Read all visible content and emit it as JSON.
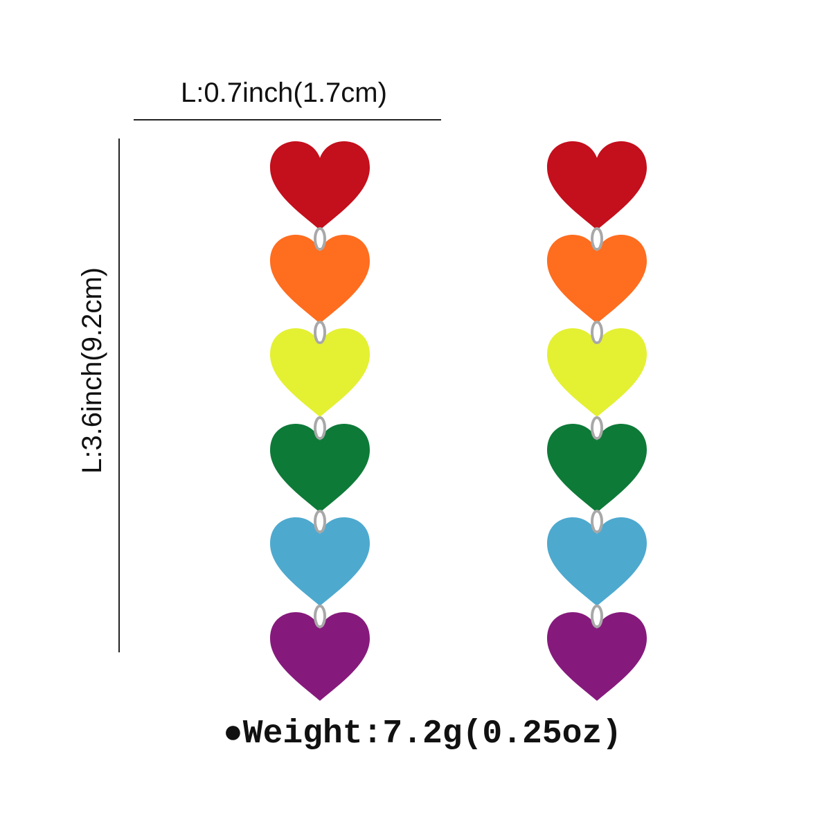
{
  "width_label": "L:0.7inch(1.7cm)",
  "length_label": "L:3.6inch(9.2cm)",
  "weight_label": "●Weight:7.2g(0.25oz)"
}
